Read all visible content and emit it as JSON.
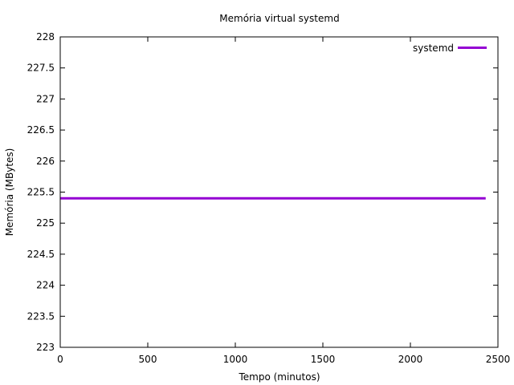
{
  "chart_data": {
    "type": "line",
    "title": "Memória virtual systemd",
    "xlabel": "Tempo (minutos)",
    "ylabel": "Memória (MBytes)",
    "xlim": [
      0,
      2500
    ],
    "ylim": [
      223,
      228
    ],
    "x_ticks": [
      0,
      500,
      1000,
      1500,
      2000,
      2500
    ],
    "x_tick_labels": [
      "0",
      "500",
      "1000",
      "1500",
      "2000",
      "2500"
    ],
    "y_ticks": [
      223,
      223.5,
      224,
      224.5,
      225,
      225.5,
      226,
      226.5,
      227,
      227.5,
      228
    ],
    "y_tick_labels": [
      "223",
      "223.5",
      "224",
      "224.5",
      "225",
      "225.5",
      "226",
      "226.5",
      "227",
      "227.5",
      "228"
    ],
    "grid": false,
    "legend_position": "top-right",
    "series": [
      {
        "name": "systemd",
        "color": "#9400d3",
        "x": [
          0,
          2430
        ],
        "y": [
          225.4,
          225.4
        ]
      }
    ]
  }
}
